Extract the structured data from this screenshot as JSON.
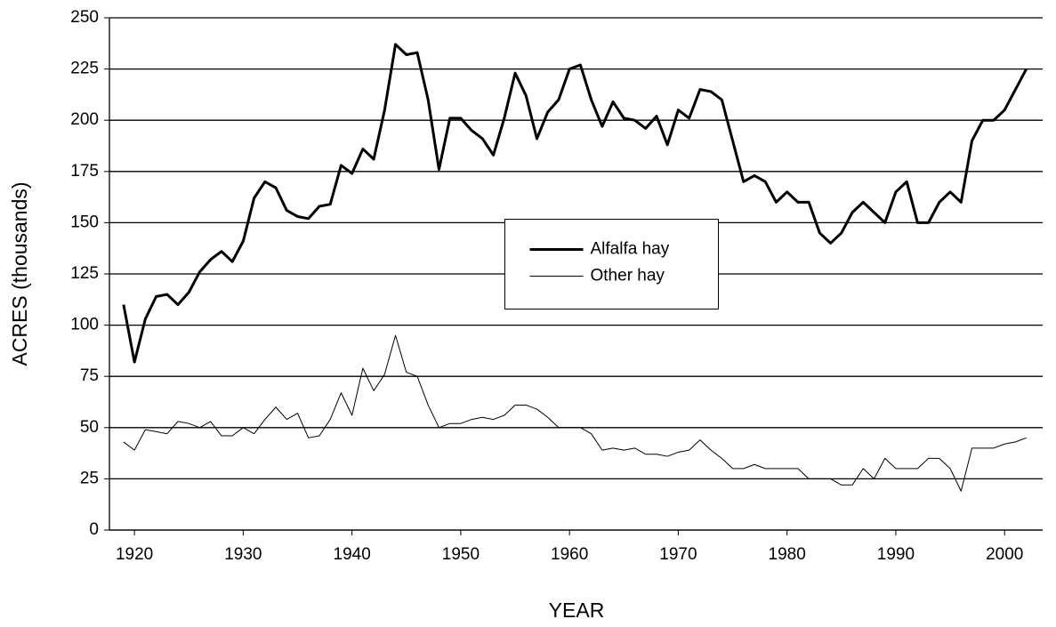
{
  "chart_data": {
    "type": "line",
    "x_label": "YEAR",
    "y_label": "ACRES (thousands)",
    "x": [
      1919,
      1920,
      1921,
      1922,
      1923,
      1924,
      1925,
      1926,
      1927,
      1928,
      1929,
      1930,
      1931,
      1932,
      1933,
      1934,
      1935,
      1936,
      1937,
      1938,
      1939,
      1940,
      1941,
      1942,
      1943,
      1944,
      1945,
      1946,
      1947,
      1948,
      1949,
      1950,
      1951,
      1952,
      1953,
      1954,
      1955,
      1956,
      1957,
      1958,
      1959,
      1960,
      1961,
      1962,
      1963,
      1964,
      1965,
      1966,
      1967,
      1968,
      1969,
      1970,
      1971,
      1972,
      1973,
      1974,
      1975,
      1976,
      1977,
      1978,
      1979,
      1980,
      1981,
      1982,
      1983,
      1984,
      1985,
      1986,
      1987,
      1988,
      1989,
      1990,
      1991,
      1992,
      1993,
      1994,
      1995,
      1996,
      1997,
      1998,
      1999,
      2000,
      2001,
      2002
    ],
    "series": [
      {
        "name": "Alfalfa hay",
        "color": "#000000",
        "line_width": 3,
        "values": [
          110,
          82,
          103,
          114,
          115,
          110,
          116,
          126,
          132,
          136,
          131,
          141,
          162,
          170,
          167,
          156,
          153,
          152,
          158,
          159,
          178,
          174,
          186,
          181,
          205,
          237,
          232,
          233,
          210,
          176,
          201,
          201,
          195,
          191,
          183,
          201,
          223,
          212,
          191,
          204,
          210,
          225,
          227,
          210,
          197,
          209,
          201,
          200,
          196,
          202,
          188,
          205,
          201,
          215,
          214,
          210,
          190,
          170,
          173,
          170,
          160,
          165,
          160,
          160,
          145,
          140,
          145,
          155,
          160,
          155,
          150,
          165,
          170,
          150,
          150,
          160,
          165,
          160,
          190,
          200,
          200,
          205,
          215,
          225
        ]
      },
      {
        "name": "Other hay",
        "color": "#000000",
        "line_width": 1,
        "values": [
          43,
          39,
          49,
          48,
          47,
          53,
          52,
          50,
          53,
          46,
          46,
          50,
          47,
          54,
          60,
          54,
          57,
          45,
          46,
          54,
          67,
          56,
          79,
          68,
          76,
          95,
          77,
          75,
          61,
          50,
          52,
          52,
          54,
          55,
          54,
          56,
          61,
          61,
          59,
          55,
          50,
          50,
          50,
          47,
          39,
          40,
          39,
          40,
          37,
          37,
          36,
          38,
          39,
          44,
          39,
          35,
          30,
          30,
          32,
          30,
          30,
          30,
          30,
          25,
          25,
          25,
          22,
          22,
          30,
          25,
          35,
          30,
          30,
          30,
          35,
          35,
          30,
          19,
          40,
          40,
          40,
          42,
          43,
          45
        ]
      }
    ],
    "xlim": [
      1917.7,
      2003.5
    ],
    "xticks": [
      1920,
      1930,
      1940,
      1950,
      1960,
      1970,
      1980,
      1990,
      2000
    ],
    "ylim": [
      0,
      250
    ],
    "yticks": [
      0,
      25,
      50,
      75,
      100,
      125,
      150,
      175,
      200,
      225,
      250
    ],
    "grid": true,
    "legend": "center"
  }
}
